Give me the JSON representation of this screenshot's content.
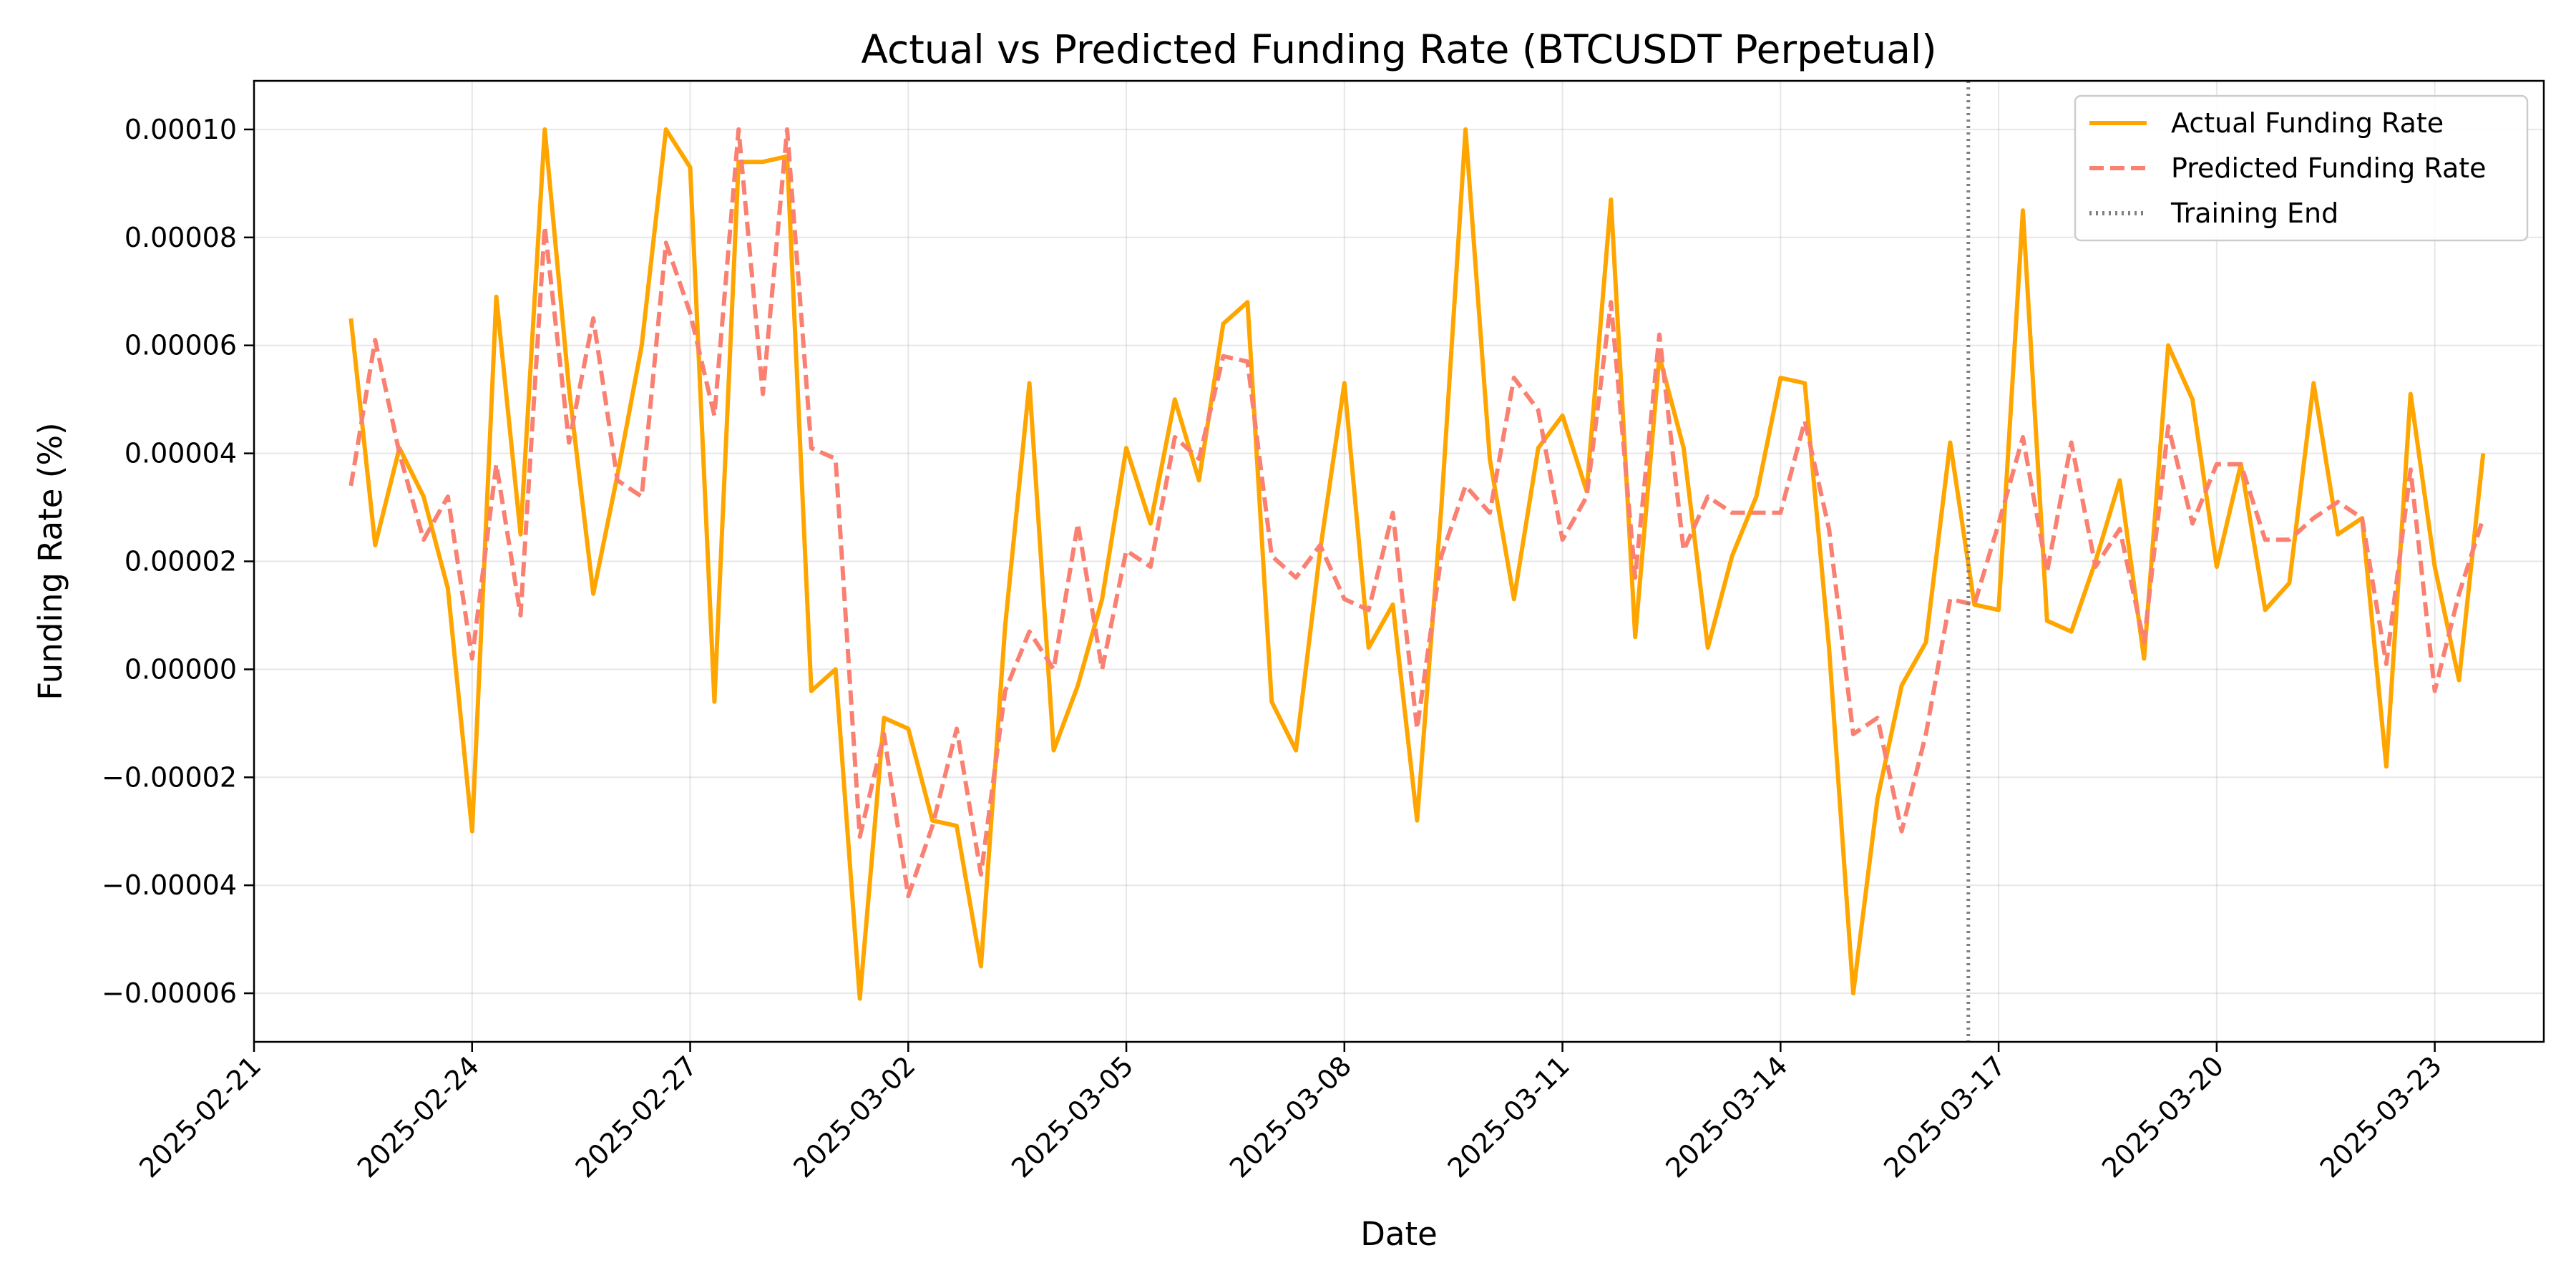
{
  "chart_data": {
    "type": "line",
    "title": "Actual vs Predicted Funding Rate (BTCUSDT Perpetual)",
    "xlabel": "Date",
    "ylabel": "Funding Rate (%)",
    "xlim": [
      "2025-02-21T00:00",
      "2025-03-24T12:00"
    ],
    "ylim": [
      -6.9e-05,
      0.000109
    ],
    "grid": true,
    "legend_position": "top-right",
    "x_ticks": [
      "2025-02-21",
      "2025-02-24",
      "2025-02-27",
      "2025-03-02",
      "2025-03-05",
      "2025-03-08",
      "2025-03-11",
      "2025-03-14",
      "2025-03-17",
      "2025-03-20",
      "2025-03-23"
    ],
    "y_ticks": [
      0.0001,
      8e-05,
      6e-05,
      4e-05,
      2e-05,
      0.0,
      -2e-05,
      -4e-05,
      -6e-05
    ],
    "y_tick_labels": [
      "0.00010",
      "0.00008",
      "0.00006",
      "0.00004",
      "0.00002",
      "0.00000",
      "−0.00002",
      "−0.00004",
      "−0.00006"
    ],
    "x": [
      "2025-02-22T08:00",
      "2025-02-22T16:00",
      "2025-02-23T00:00",
      "2025-02-23T08:00",
      "2025-02-23T16:00",
      "2025-02-24T00:00",
      "2025-02-24T08:00",
      "2025-02-24T16:00",
      "2025-02-25T00:00",
      "2025-02-25T08:00",
      "2025-02-25T16:00",
      "2025-02-26T00:00",
      "2025-02-26T08:00",
      "2025-02-26T16:00",
      "2025-02-27T00:00",
      "2025-02-27T08:00",
      "2025-02-27T16:00",
      "2025-02-28T00:00",
      "2025-02-28T08:00",
      "2025-02-28T16:00",
      "2025-03-01T00:00",
      "2025-03-01T08:00",
      "2025-03-01T16:00",
      "2025-03-02T00:00",
      "2025-03-02T08:00",
      "2025-03-02T16:00",
      "2025-03-03T00:00",
      "2025-03-03T08:00",
      "2025-03-03T16:00",
      "2025-03-04T00:00",
      "2025-03-04T08:00",
      "2025-03-04T16:00",
      "2025-03-05T00:00",
      "2025-03-05T08:00",
      "2025-03-05T16:00",
      "2025-03-06T00:00",
      "2025-03-06T08:00",
      "2025-03-06T16:00",
      "2025-03-07T00:00",
      "2025-03-07T08:00",
      "2025-03-07T16:00",
      "2025-03-08T00:00",
      "2025-03-08T08:00",
      "2025-03-08T16:00",
      "2025-03-09T00:00",
      "2025-03-09T08:00",
      "2025-03-09T16:00",
      "2025-03-10T00:00",
      "2025-03-10T08:00",
      "2025-03-10T16:00",
      "2025-03-11T00:00",
      "2025-03-11T08:00",
      "2025-03-11T16:00",
      "2025-03-12T00:00",
      "2025-03-12T08:00",
      "2025-03-12T16:00",
      "2025-03-13T00:00",
      "2025-03-13T08:00",
      "2025-03-13T16:00",
      "2025-03-14T00:00",
      "2025-03-14T08:00",
      "2025-03-14T16:00",
      "2025-03-15T00:00",
      "2025-03-15T08:00",
      "2025-03-15T16:00",
      "2025-03-16T00:00",
      "2025-03-16T08:00",
      "2025-03-16T16:00",
      "2025-03-17T00:00",
      "2025-03-17T08:00",
      "2025-03-17T16:00",
      "2025-03-18T00:00",
      "2025-03-18T08:00",
      "2025-03-18T16:00",
      "2025-03-19T00:00",
      "2025-03-19T08:00",
      "2025-03-19T16:00",
      "2025-03-20T00:00",
      "2025-03-20T08:00",
      "2025-03-20T16:00",
      "2025-03-21T00:00",
      "2025-03-21T08:00",
      "2025-03-21T16:00",
      "2025-03-22T00:00",
      "2025-03-22T08:00",
      "2025-03-22T16:00",
      "2025-03-23T00:00",
      "2025-03-23T08:00",
      "2025-03-23T16:00"
    ],
    "series": [
      {
        "name": "Actual Funding Rate",
        "color": "#ffa500",
        "style": "solid",
        "values": [
          6.5e-05,
          2.3e-05,
          4.1e-05,
          3.2e-05,
          1.5e-05,
          -3e-05,
          6.9e-05,
          2.5e-05,
          0.0001,
          5.2e-05,
          1.4e-05,
          3.6e-05,
          6e-05,
          0.0001,
          9.3e-05,
          -6e-06,
          9.4e-05,
          9.4e-05,
          9.5e-05,
          -4e-06,
          0.0,
          -6.1e-05,
          -9e-06,
          -1.1e-05,
          -2.8e-05,
          -2.9e-05,
          -5.5e-05,
          8e-06,
          5.3e-05,
          -1.5e-05,
          -3e-06,
          1.3e-05,
          4.1e-05,
          2.7e-05,
          5e-05,
          3.5e-05,
          6.4e-05,
          6.8e-05,
          -6e-06,
          -1.5e-05,
          2.2e-05,
          5.3e-05,
          4e-06,
          1.2e-05,
          -2.8e-05,
          3e-05,
          0.0001,
          3.9e-05,
          1.3e-05,
          4.1e-05,
          4.7e-05,
          3.3e-05,
          8.7e-05,
          6e-06,
          5.8e-05,
          4.1e-05,
          4e-06,
          2.1e-05,
          3.2e-05,
          5.4e-05,
          5.3e-05,
          4e-06,
          -6e-05,
          -2.4e-05,
          -3e-06,
          5e-06,
          4.2e-05,
          1.2e-05,
          1.1e-05,
          8.5e-05,
          9e-06,
          7e-06,
          2e-05,
          3.5e-05,
          2e-06,
          6e-05,
          5e-05,
          1.9e-05,
          3.8e-05,
          1.1e-05,
          1.6e-05,
          5.3e-05,
          2.5e-05,
          2.8e-05,
          -1.8e-05,
          5.1e-05,
          1.9e-05,
          -2e-06,
          4e-05
        ]
      },
      {
        "name": "Predicted Funding Rate",
        "color": "#fa8072",
        "style": "dashed",
        "values": [
          3.4e-05,
          6.1e-05,
          4e-05,
          2.4e-05,
          3.2e-05,
          2e-06,
          3.8e-05,
          1e-05,
          8.2e-05,
          4.2e-05,
          6.5e-05,
          3.5e-05,
          3.2e-05,
          7.9e-05,
          6.6e-05,
          4.7e-05,
          0.0001,
          5.1e-05,
          0.0001,
          4.1e-05,
          3.9e-05,
          -3.1e-05,
          -1.2e-05,
          -4.2e-05,
          -2.9e-05,
          -1.1e-05,
          -3.8e-05,
          -4e-06,
          7e-06,
          0.0,
          2.7e-05,
          0.0,
          2.2e-05,
          1.9e-05,
          4.3e-05,
          3.9e-05,
          5.8e-05,
          5.7e-05,
          2.1e-05,
          1.7e-05,
          2.3e-05,
          1.3e-05,
          1.1e-05,
          2.9e-05,
          -1.1e-05,
          2.1e-05,
          3.4e-05,
          2.9e-05,
          5.4e-05,
          4.8e-05,
          2.4e-05,
          3.2e-05,
          6.8e-05,
          1.7e-05,
          6.2e-05,
          2.2e-05,
          3.2e-05,
          2.9e-05,
          2.9e-05,
          2.9e-05,
          4.6e-05,
          2.6e-05,
          -1.2e-05,
          -9e-06,
          -3e-05,
          -1.2e-05,
          1.3e-05,
          1.2e-05,
          2.7e-05,
          4.3e-05,
          1.8e-05,
          4.2e-05,
          1.9e-05,
          2.6e-05,
          5e-06,
          4.5e-05,
          2.7e-05,
          3.8e-05,
          3.8e-05,
          2.4e-05,
          2.4e-05,
          2.8e-05,
          3.1e-05,
          2.8e-05,
          1e-06,
          3.7e-05,
          -4e-06,
          1.4e-05,
          2.8e-05
        ]
      }
    ],
    "annotations": [
      {
        "name": "Training End",
        "type": "vline",
        "x": "2025-03-16T14:00",
        "color": "#808080",
        "style": "dotted"
      }
    ]
  }
}
